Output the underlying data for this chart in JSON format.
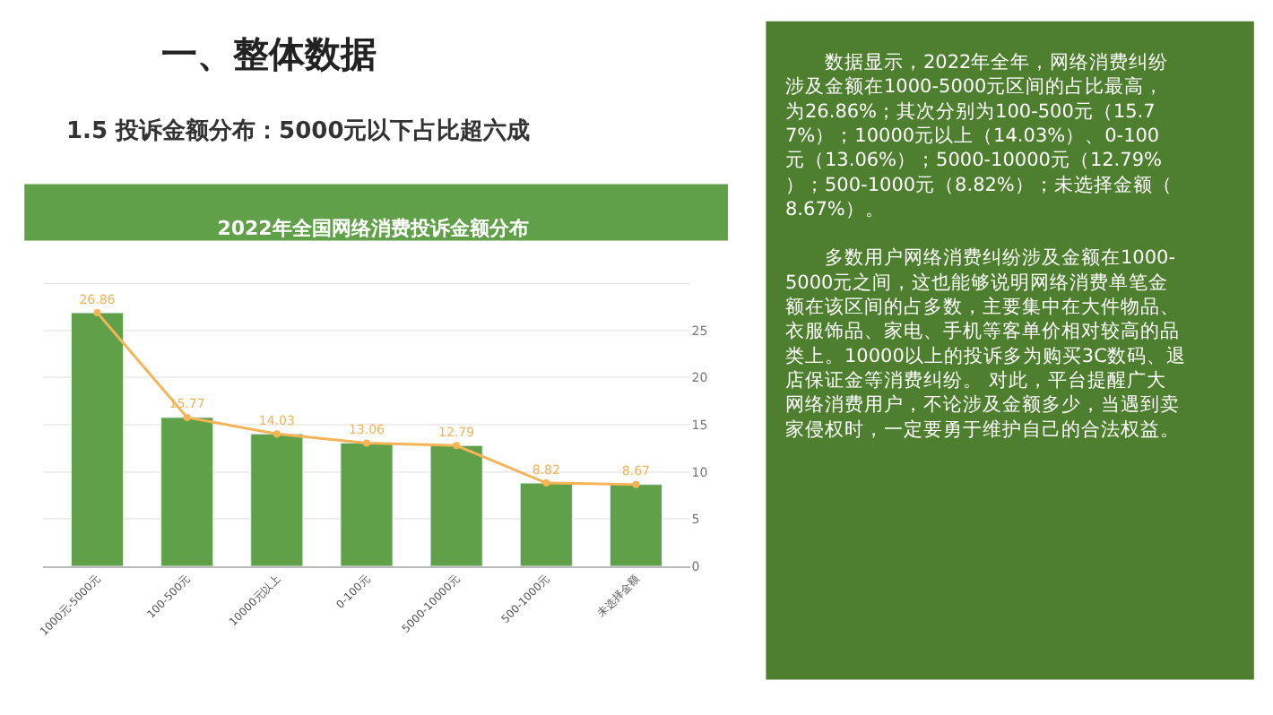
{
  "chart_data": {
    "type": "bar",
    "title": "一、整体数据",
    "subtitle": "1.5 投诉金额分布：5000元以下占比超六成",
    "annotations": [
      "2022年全国网络消费投诉金额分布",
      "数据显示，2022年全年，网络消费纠纷涉及金额在1000-5000元区间的占比最高，为26.86%；其次分别为100-500元（15.77%）；10000元以上（14.03%）、0-100元（13.06%）；5000-10000元（12.79%）；500-1000元（8.82%）；未选择金额（8.67%）。",
      "多数用户网络消费纠纷涉及金额在1000-5000元之间，这也能够说明网络消费单笔金额在该区间的占多数，主要集中在大件物品、衣服饰品、家电、手机等客单价相对较高的品类上。10000以上的投诉多为购买3C数码、退店保证金等消费纠纷。 对此，平台提醒广大网络消费用户，不论涉及金额多少，当遇到卖家侵权时，一定要勇于维护自己的合法权益。"
    ],
    "categories": [
      "1000元-5000元",
      "100-500元",
      "10000元以上",
      "0-100元",
      "5000-10000元",
      "500-1000元",
      "未选择金额"
    ],
    "series": [
      {
        "color": "#5fa048",
        "values": [
          26.86,
          15.77,
          14.03,
          13.06,
          12.79,
          8.82,
          8.67
        ]
      },
      {
        "type": "line",
        "color": "#f5b456",
        "marker": "circle",
        "data_labels": true,
        "values": [
          26.86,
          15.77,
          14.03,
          13.06,
          12.79,
          8.82,
          8.67
        ]
      }
    ],
    "ylim": [
      0,
      30
    ],
    "yticks": [
      0,
      5,
      10,
      15,
      20,
      25,
      {
        "value": 30,
        "label": null
      }
    ],
    "grid": "y"
  }
}
